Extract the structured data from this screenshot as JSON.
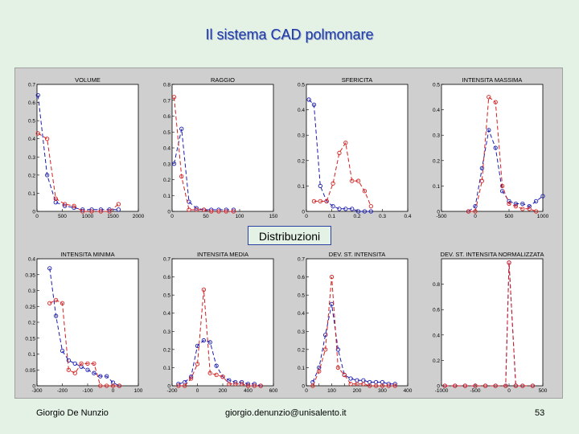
{
  "slide": {
    "title": "Il sistema CAD polmonare",
    "overlay_label": "Distribuzioni",
    "footer_author": "Giorgio De Nunzio",
    "footer_email": "giorgio.denunzio@unisalento.it",
    "page_number": "53"
  },
  "colors": {
    "blue": "#1c1cb0",
    "red": "#d42020",
    "axes_bg": "#ffffff",
    "panel_bg": "#cfcfcf"
  },
  "chart_data": [
    {
      "type": "line",
      "title": "VOLUME",
      "xlim": [
        0,
        2000
      ],
      "ylim": [
        0,
        0.7
      ],
      "xticks": [
        0,
        500,
        1000,
        1500,
        2000
      ],
      "xtick_labels": [
        "0",
        "500",
        "1000",
        "1500",
        "2000"
      ],
      "yticks": [
        0,
        0.1,
        0.2,
        0.3,
        0.4,
        0.5,
        0.6,
        0.7
      ],
      "ytick_labels": [
        "0",
        "0.1",
        "0.2",
        "0.3",
        "0.4",
        "0.5",
        "0.6",
        "0.7"
      ],
      "series": [
        {
          "name": "blue",
          "color": "#1c1cb0",
          "x": [
            20,
            200,
            370,
            550,
            730,
            900,
            1080,
            1260,
            1430,
            1610
          ],
          "y": [
            0.64,
            0.2,
            0.05,
            0.03,
            0.02,
            0.01,
            0.01,
            0.01,
            0.01,
            0.01
          ]
        },
        {
          "name": "red",
          "color": "#d42020",
          "x": [
            20,
            200,
            370,
            550,
            730,
            900,
            1080,
            1260,
            1430,
            1610
          ],
          "y": [
            0.43,
            0.4,
            0.07,
            0.04,
            0.03,
            0.0,
            0.0,
            0.0,
            0.0,
            0.04
          ]
        }
      ]
    },
    {
      "type": "line",
      "title": "RAGGIO",
      "xlim": [
        0,
        150
      ],
      "ylim": [
        0,
        0.8
      ],
      "xticks": [
        0,
        50,
        100,
        150
      ],
      "xtick_labels": [
        "0",
        "50",
        "100",
        "150"
      ],
      "yticks": [
        0,
        0.1,
        0.2,
        0.3,
        0.4,
        0.5,
        0.6,
        0.7,
        0.8
      ],
      "ytick_labels": [
        "0",
        "0.1",
        "0.2",
        "0.3",
        "0.4",
        "0.5",
        "0.6",
        "0.7",
        "0.8"
      ],
      "series": [
        {
          "name": "blue",
          "color": "#1c1cb0",
          "x": [
            3,
            14,
            25,
            36,
            47,
            58,
            69,
            80,
            91
          ],
          "y": [
            0.3,
            0.52,
            0.06,
            0.02,
            0.01,
            0.01,
            0.01,
            0.01,
            0.01
          ]
        },
        {
          "name": "red",
          "color": "#d42020",
          "x": [
            3,
            14,
            25,
            36,
            47,
            58,
            69,
            80,
            91
          ],
          "y": [
            0.72,
            0.22,
            0.01,
            0.01,
            0.01,
            0.0,
            0.0,
            0.0,
            0.0
          ]
        }
      ]
    },
    {
      "type": "line",
      "title": "SFERICITA",
      "xlim": [
        0,
        0.4
      ],
      "ylim": [
        0,
        0.5
      ],
      "xticks": [
        0,
        0.1,
        0.2,
        0.3,
        0.4
      ],
      "xtick_labels": [
        "0",
        "0.1",
        "0.2",
        "0.3",
        "0.4"
      ],
      "yticks": [
        0,
        0.1,
        0.2,
        0.3,
        0.4,
        0.5
      ],
      "ytick_labels": [
        "0",
        "0.1",
        "0.2",
        "0.3",
        "0.4",
        "0.5"
      ],
      "series": [
        {
          "name": "blue",
          "color": "#1c1cb0",
          "x": [
            0.01,
            0.03,
            0.055,
            0.08,
            0.105,
            0.13,
            0.155,
            0.18,
            0.205,
            0.23,
            0.255
          ],
          "y": [
            0.44,
            0.42,
            0.1,
            0.04,
            0.02,
            0.01,
            0.01,
            0.01,
            0.0,
            0.0,
            0.0
          ]
        },
        {
          "name": "red",
          "color": "#d42020",
          "x": [
            0.03,
            0.055,
            0.08,
            0.105,
            0.13,
            0.155,
            0.18,
            0.205,
            0.23,
            0.255
          ],
          "y": [
            0.04,
            0.04,
            0.04,
            0.11,
            0.23,
            0.27,
            0.12,
            0.12,
            0.08,
            0.02
          ]
        }
      ]
    },
    {
      "type": "line",
      "title": "INTENSITA MASSIMA",
      "xlim": [
        -500,
        1000
      ],
      "ylim": [
        0,
        0.5
      ],
      "xticks": [
        -500,
        0,
        500,
        1000
      ],
      "xtick_labels": [
        "-500",
        "0",
        "500",
        "1000"
      ],
      "yticks": [
        0,
        0.1,
        0.2,
        0.3,
        0.4,
        0.5
      ],
      "ytick_labels": [
        "0",
        "0.1",
        "0.2",
        "0.3",
        "0.4",
        "0.5"
      ],
      "series": [
        {
          "name": "blue",
          "color": "#1c1cb0",
          "x": [
            -100,
            0,
            100,
            200,
            300,
            400,
            500,
            600,
            700,
            800,
            900,
            1000
          ],
          "y": [
            0.0,
            0.02,
            0.17,
            0.32,
            0.25,
            0.08,
            0.04,
            0.03,
            0.03,
            0.02,
            0.04,
            0.06
          ]
        },
        {
          "name": "red",
          "color": "#d42020",
          "x": [
            -100,
            0,
            100,
            200,
            300,
            400,
            500,
            600,
            700,
            800,
            900
          ],
          "y": [
            0.0,
            0.0,
            0.12,
            0.45,
            0.43,
            0.1,
            0.03,
            0.02,
            0.01,
            0.01,
            0.0
          ]
        }
      ]
    },
    {
      "type": "line",
      "title": "INTENSITA MINIMA",
      "xlim": [
        -300,
        100
      ],
      "ylim": [
        0,
        0.4
      ],
      "xticks": [
        -300,
        -200,
        -100,
        0,
        100
      ],
      "xtick_labels": [
        "-300",
        "-200",
        "-100",
        "0",
        "100"
      ],
      "yticks": [
        0,
        0.05,
        0.1,
        0.15,
        0.2,
        0.25,
        0.3,
        0.35,
        0.4
      ],
      "ytick_labels": [
        "0",
        "0.05",
        "0.1",
        "0.15",
        "0.2",
        "0.25",
        "0.3",
        "0.35",
        "0.4"
      ],
      "series": [
        {
          "name": "blue",
          "color": "#1c1cb0",
          "x": [
            -250,
            -225,
            -200,
            -175,
            -150,
            -125,
            -100,
            -75,
            -50,
            -25,
            0,
            25
          ],
          "y": [
            0.37,
            0.22,
            0.11,
            0.08,
            0.07,
            0.06,
            0.05,
            0.04,
            0.03,
            0.03,
            0.01,
            0.0
          ]
        },
        {
          "name": "red",
          "color": "#d42020",
          "x": [
            -250,
            -225,
            -200,
            -175,
            -150,
            -125,
            -100,
            -75,
            -50,
            -25,
            0,
            25
          ],
          "y": [
            0.26,
            0.27,
            0.26,
            0.05,
            0.04,
            0.07,
            0.07,
            0.07,
            0.0,
            0.0,
            0.0,
            0.0
          ]
        }
      ]
    },
    {
      "type": "line",
      "title": "INTENSITA MEDIA",
      "xlim": [
        -200,
        600
      ],
      "ylim": [
        0,
        0.7
      ],
      "xticks": [
        -200,
        0,
        200,
        400,
        600
      ],
      "xtick_labels": [
        "-200",
        "0",
        "200",
        "400",
        "600"
      ],
      "yticks": [
        0,
        0.1,
        0.2,
        0.3,
        0.4,
        0.5,
        0.6,
        0.7
      ],
      "ytick_labels": [
        "0",
        "0.1",
        "0.2",
        "0.3",
        "0.4",
        "0.5",
        "0.6",
        "0.7"
      ],
      "series": [
        {
          "name": "blue",
          "color": "#1c1cb0",
          "x": [
            -150,
            -100,
            -50,
            0,
            50,
            100,
            150,
            200,
            250,
            300,
            350,
            400,
            450,
            500
          ],
          "y": [
            0.01,
            0.02,
            0.05,
            0.22,
            0.25,
            0.24,
            0.11,
            0.05,
            0.03,
            0.02,
            0.02,
            0.01,
            0.01,
            0.0
          ]
        },
        {
          "name": "red",
          "color": "#d42020",
          "x": [
            -150,
            -100,
            -50,
            0,
            50,
            100,
            150,
            200,
            250,
            300,
            350,
            400,
            450,
            500
          ],
          "y": [
            0.0,
            0.0,
            0.04,
            0.12,
            0.53,
            0.07,
            0.06,
            0.05,
            0.01,
            0.01,
            0.01,
            0.0,
            0.0,
            0.0
          ]
        }
      ]
    },
    {
      "type": "line",
      "title": "DEV. ST. INTENSITA",
      "xlim": [
        0,
        400
      ],
      "ylim": [
        0,
        0.7
      ],
      "xticks": [
        0,
        50,
        100,
        150,
        200,
        250,
        300,
        350,
        400
      ],
      "xtick_labels": [
        "0",
        "",
        "100",
        "",
        "200",
        "",
        "300",
        "",
        "400"
      ],
      "yticks": [
        0,
        0.1,
        0.2,
        0.3,
        0.4,
        0.5,
        0.6,
        0.7
      ],
      "ytick_labels": [
        "0",
        "0.1",
        "0.2",
        "0.3",
        "0.4",
        "0.5",
        "0.6",
        "0.7"
      ],
      "series": [
        {
          "name": "blue",
          "color": "#1c1cb0",
          "x": [
            25,
            50,
            75,
            100,
            125,
            150,
            175,
            200,
            225,
            250,
            275,
            300,
            325,
            350
          ],
          "y": [
            0.02,
            0.1,
            0.28,
            0.45,
            0.2,
            0.06,
            0.04,
            0.03,
            0.03,
            0.02,
            0.02,
            0.02,
            0.01,
            0.01
          ]
        },
        {
          "name": "red",
          "color": "#d42020",
          "x": [
            25,
            50,
            75,
            100,
            125,
            150,
            175,
            200,
            225,
            250,
            275,
            300,
            325,
            350
          ],
          "y": [
            0.0,
            0.08,
            0.2,
            0.6,
            0.1,
            0.06,
            0.01,
            0.01,
            0.01,
            0.0,
            0.0,
            0.0,
            0.0,
            0.0
          ]
        }
      ]
    },
    {
      "type": "line",
      "title": "DEV. ST. INTENSITA NORMALIZZATA",
      "xlim": [
        -1000,
        500
      ],
      "ylim": [
        0,
        1.0
      ],
      "xticks": [
        -1000,
        -500,
        0,
        500
      ],
      "xtick_labels": [
        "-1000",
        "-500",
        "0",
        "500"
      ],
      "yticks": [
        0,
        0.2,
        0.4,
        0.6,
        0.8
      ],
      "ytick_labels": [
        "0",
        "0.2",
        "0.4",
        "0.6",
        "0.8"
      ],
      "series": [
        {
          "name": "blue",
          "color": "#1c1cb0",
          "x": [
            -950,
            -800,
            -650,
            -500,
            -350,
            -200,
            -50,
            0,
            100,
            200,
            350
          ],
          "y": [
            0.0,
            0.0,
            0.0,
            0.0,
            0.0,
            0.0,
            0.0,
            0.97,
            0.0,
            0.0,
            0.0
          ]
        },
        {
          "name": "red",
          "color": "#d42020",
          "x": [
            -950,
            -800,
            -650,
            -500,
            -350,
            -200,
            -50,
            0,
            100,
            200,
            350
          ],
          "y": [
            0.0,
            0.0,
            0.0,
            0.0,
            0.0,
            0.0,
            0.0,
            0.97,
            0.0,
            0.0,
            0.0
          ]
        }
      ]
    }
  ]
}
